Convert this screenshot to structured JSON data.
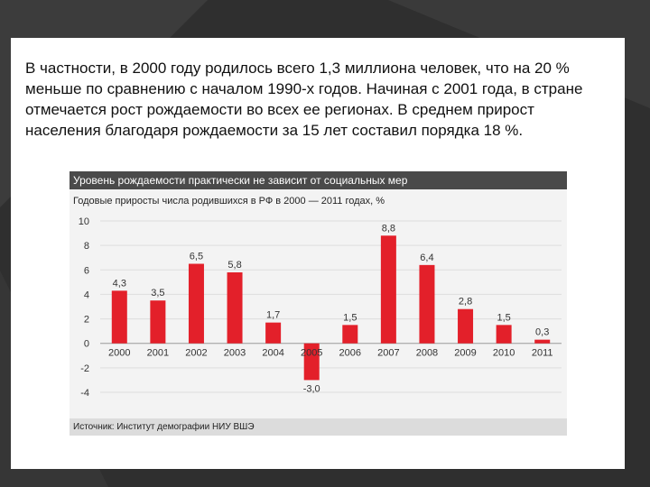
{
  "slide": {
    "paragraph": "В частности, в 2000 году родилось всего 1,3 миллиона человек, что на 20 % меньше по сравнению с началом 1990-х годов. Начиная с 2001 года, в стране отмечается рост рождаемости во всех ее регионах. В среднем прирост населения благодаря рождаемости за 15 лет составил порядка 18 %."
  },
  "chart": {
    "header": "Уровень рождаемости практически не зависит от социальных мер",
    "subtitle": "Годовые приросты числа родившихся в РФ в 2000 — 2011 годах, %",
    "source": "Источник: Институт демографии НИУ ВШЭ"
  },
  "chart_data": {
    "type": "bar",
    "title": "Годовые приросты числа родившихся в РФ в 2000 — 2011 годах, %",
    "categories": [
      "2000",
      "2001",
      "2002",
      "2003",
      "2004",
      "2005",
      "2006",
      "2007",
      "2008",
      "2009",
      "2010",
      "2011"
    ],
    "values": [
      4.3,
      3.5,
      6.5,
      5.8,
      1.7,
      -3.0,
      1.5,
      8.8,
      6.4,
      2.8,
      1.5,
      0.3
    ],
    "value_labels": [
      "4,3",
      "3,5",
      "6,5",
      "5,8",
      "1,7",
      "-3,0",
      "1,5",
      "8,8",
      "6,4",
      "2,8",
      "1,5",
      "0,3"
    ],
    "yticks": [
      10,
      8,
      6,
      4,
      2,
      0,
      -2,
      -4
    ],
    "ylim": [
      -4,
      10
    ],
    "grid": true,
    "legend": "none",
    "bar_color": "#e3202a"
  }
}
